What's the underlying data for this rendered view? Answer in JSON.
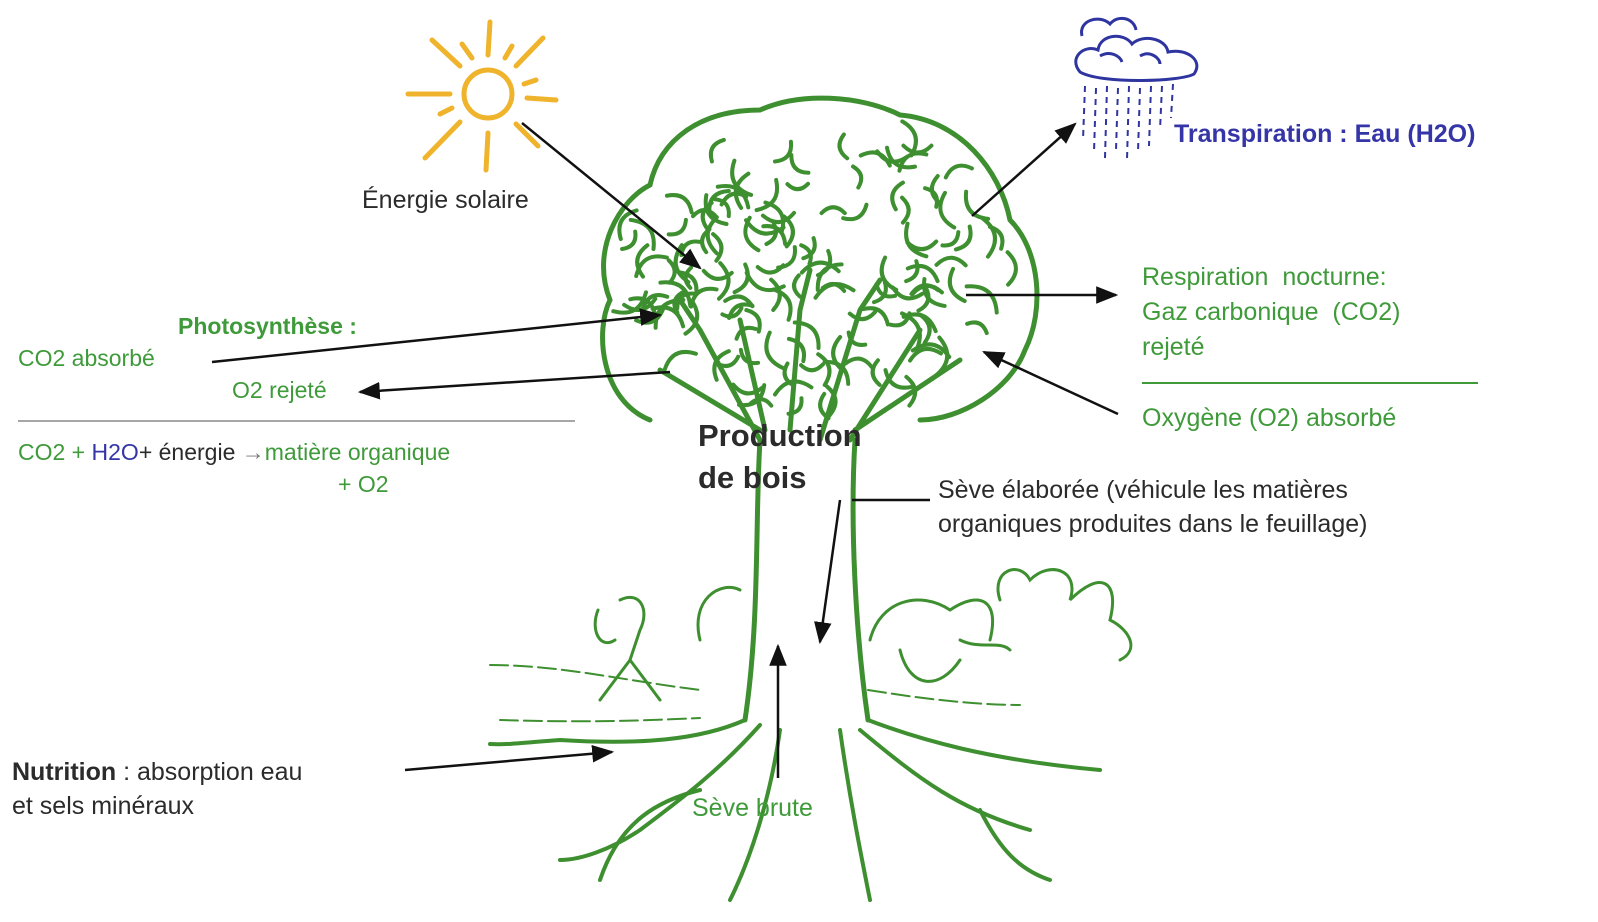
{
  "sun": {
    "label": "Énergie solaire"
  },
  "rain": {
    "label": "Transpiration : Eau (H2O)"
  },
  "respiration": {
    "lines": [
      "Respiration  nocturne:",
      "Gaz carbonique  (CO2)",
      "rejeté"
    ],
    "absorbed": "Oxygène (O2) absorbé"
  },
  "photosynthesis": {
    "title": "Photosynthèse :",
    "absorbed": "CO2 absorbé",
    "released": "O2 rejeté",
    "equation": {
      "parts": [
        "CO2 +",
        "H2O",
        "+ énergie",
        "→",
        "matière organique"
      ],
      "line2": "+ O2"
    }
  },
  "wood": {
    "lines": [
      "Production",
      "de bois"
    ]
  },
  "elaborated_sap": {
    "lines": [
      "Sève élaborée (véhicule les matières",
      "organiques produites dans le feuillage)"
    ]
  },
  "nutrition": {
    "title": "Nutrition",
    "text": " : absorption eau",
    "line2": "et sels minéraux"
  },
  "raw_sap": {
    "label": "Sève brute"
  }
}
